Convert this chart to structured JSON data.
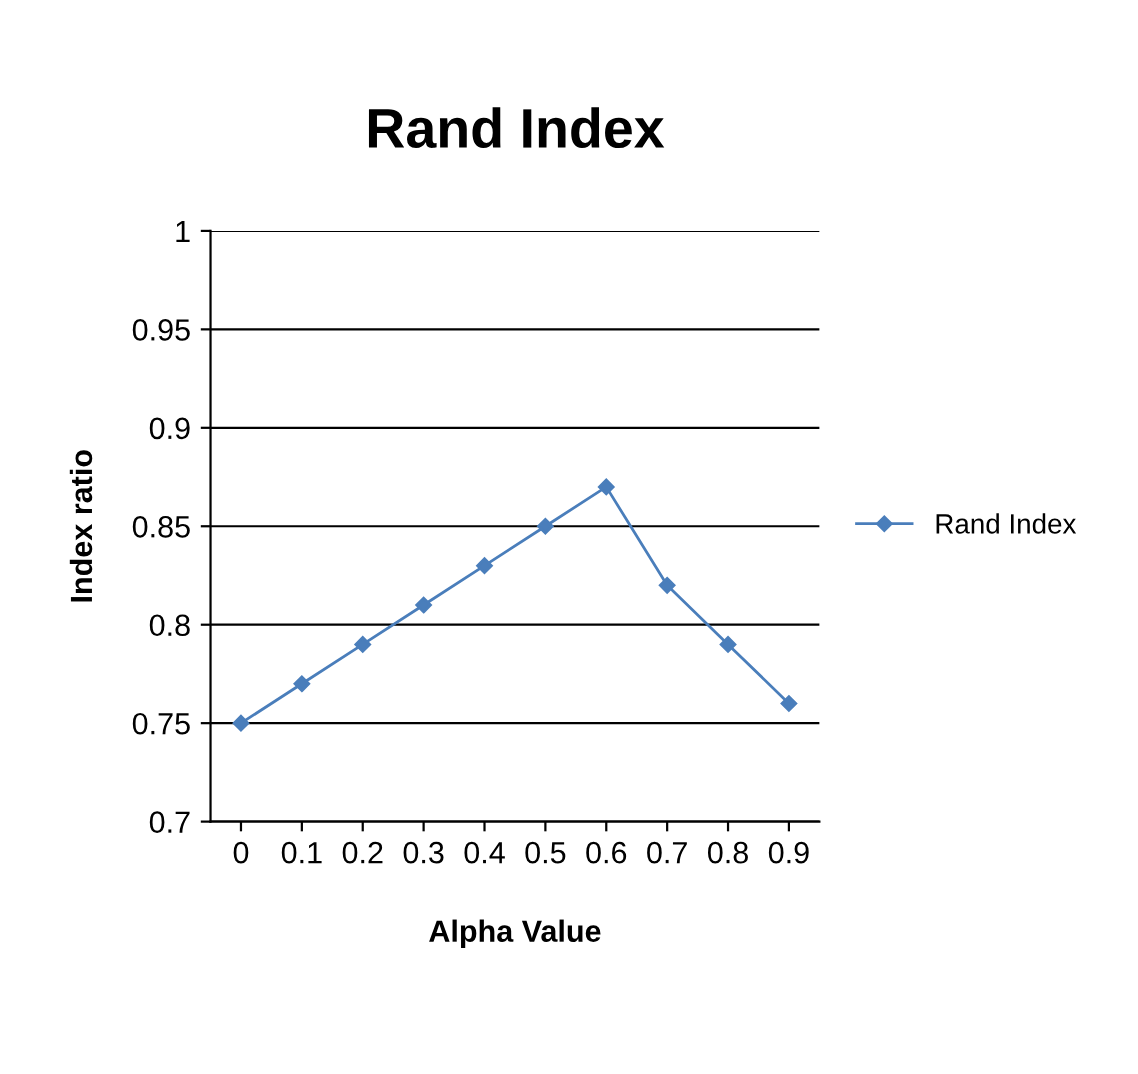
{
  "chart_data": {
    "type": "line",
    "title": "Rand Index",
    "xlabel": "Alpha Value",
    "ylabel": "Index ratio",
    "categories": [
      "0",
      "0.1",
      "0.2",
      "0.3",
      "0.4",
      "0.5",
      "0.6",
      "0.7",
      "0.8",
      "0.9"
    ],
    "series": [
      {
        "name": "Rand Index",
        "color": "#4a7ebb",
        "values": [
          0.75,
          0.77,
          0.79,
          0.81,
          0.83,
          0.85,
          0.87,
          0.82,
          0.79,
          0.76
        ]
      }
    ],
    "ylim": [
      0.7,
      1
    ],
    "yticks": [
      0.7,
      0.75,
      0.8,
      0.85,
      0.9,
      0.95,
      1
    ],
    "grid": "y",
    "legend": "right",
    "marker": "diamond",
    "line_style": "solid"
  }
}
